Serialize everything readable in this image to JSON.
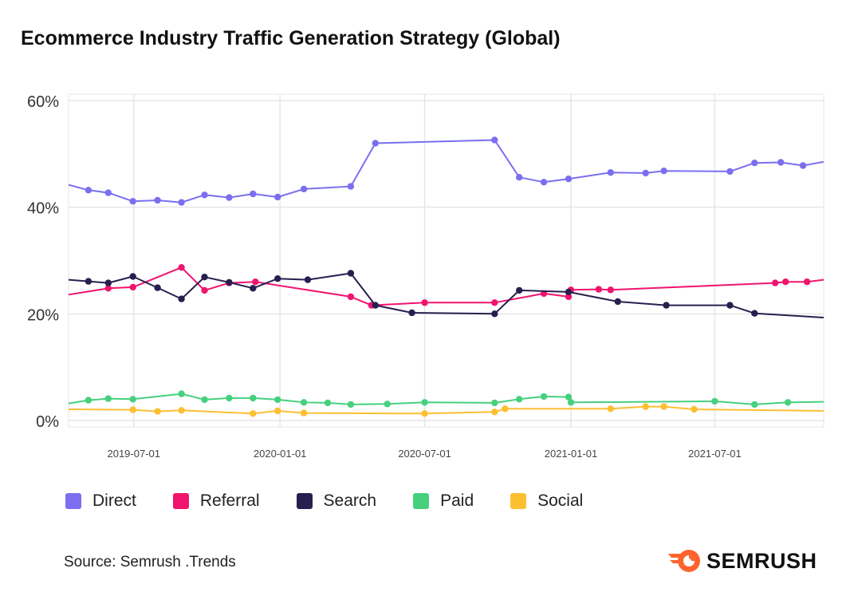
{
  "title": "Ecommerce Industry Traffic Generation Strategy (Global)",
  "source": "Source: Semrush .Trends",
  "brand": {
    "name": "SEMRUSH",
    "color": "#ff642d",
    "logo_icon": "semrush-flame-icon"
  },
  "chart_data": {
    "type": "line",
    "title": "Ecommerce Industry Traffic Generation Strategy (Global)",
    "xlabel": "",
    "ylabel": "",
    "x_ticks": [
      "2019-07-01",
      "2020-01-01",
      "2020-07-01",
      "2021-01-01",
      "2021-07-01"
    ],
    "x_range": [
      "2019-04-10",
      "2021-11-15"
    ],
    "y_ticks": [
      "0%",
      "20%",
      "40%",
      "60%"
    ],
    "ylim": [
      0,
      60
    ],
    "grid": true,
    "legend_position": "bottom",
    "series": [
      {
        "name": "Direct",
        "color": "#7b6ff0",
        "points": [
          [
            "2019-04-10",
            44.2,
            false
          ],
          [
            "2019-05-05",
            43.2,
            true
          ],
          [
            "2019-05-30",
            42.7,
            true
          ],
          [
            "2019-06-30",
            41.1,
            true
          ],
          [
            "2019-07-31",
            41.3,
            true
          ],
          [
            "2019-08-30",
            40.9,
            true
          ],
          [
            "2019-09-28",
            42.3,
            true
          ],
          [
            "2019-10-29",
            41.8,
            true
          ],
          [
            "2019-11-28",
            42.5,
            true
          ],
          [
            "2019-12-29",
            41.9,
            true
          ],
          [
            "2020-01-31",
            43.4,
            true
          ],
          [
            "2020-03-30",
            43.9,
            true
          ],
          [
            "2020-04-30",
            52.0,
            true
          ],
          [
            "2020-09-27",
            52.6,
            true
          ],
          [
            "2020-10-28",
            45.6,
            true
          ],
          [
            "2020-11-28",
            44.7,
            true
          ],
          [
            "2020-12-29",
            45.3,
            true
          ],
          [
            "2021-02-20",
            46.5,
            true
          ],
          [
            "2021-04-05",
            46.4,
            true
          ],
          [
            "2021-04-28",
            46.8,
            true
          ],
          [
            "2021-07-20",
            46.7,
            true
          ],
          [
            "2021-08-20",
            48.3,
            true
          ],
          [
            "2021-09-22",
            48.4,
            true
          ],
          [
            "2021-10-20",
            47.8,
            true
          ],
          [
            "2021-11-15",
            48.5,
            false
          ]
        ]
      },
      {
        "name": "Referral",
        "color": "#f0146e",
        "points": [
          [
            "2019-04-10",
            23.6,
            false
          ],
          [
            "2019-05-30",
            24.8,
            true
          ],
          [
            "2019-06-30",
            25.0,
            true
          ],
          [
            "2019-08-30",
            28.7,
            true
          ],
          [
            "2019-09-28",
            24.4,
            true
          ],
          [
            "2019-10-29",
            25.8,
            true
          ],
          [
            "2019-12-01",
            26.0,
            true
          ],
          [
            "2020-03-30",
            23.2,
            true
          ],
          [
            "2020-04-25",
            21.6,
            true
          ],
          [
            "2020-07-01",
            22.1,
            true
          ],
          [
            "2020-09-27",
            22.1,
            true
          ],
          [
            "2020-11-28",
            23.8,
            true
          ],
          [
            "2020-12-29",
            23.2,
            true
          ],
          [
            "2021-01-01",
            24.5,
            true
          ],
          [
            "2021-02-05",
            24.6,
            true
          ],
          [
            "2021-02-20",
            24.5,
            true
          ],
          [
            "2021-09-15",
            25.8,
            true
          ],
          [
            "2021-09-28",
            26.0,
            true
          ],
          [
            "2021-10-25",
            26.0,
            true
          ],
          [
            "2021-11-15",
            26.4,
            false
          ]
        ]
      },
      {
        "name": "Search",
        "color": "#27204e",
        "points": [
          [
            "2019-04-10",
            26.4,
            false
          ],
          [
            "2019-05-05",
            26.1,
            true
          ],
          [
            "2019-05-30",
            25.8,
            true
          ],
          [
            "2019-06-30",
            27.0,
            true
          ],
          [
            "2019-07-31",
            24.9,
            true
          ],
          [
            "2019-08-30",
            22.8,
            true
          ],
          [
            "2019-09-28",
            26.9,
            true
          ],
          [
            "2019-10-29",
            25.9,
            true
          ],
          [
            "2019-11-28",
            24.8,
            true
          ],
          [
            "2019-12-29",
            26.6,
            true
          ],
          [
            "2020-02-05",
            26.4,
            true
          ],
          [
            "2020-03-30",
            27.6,
            true
          ],
          [
            "2020-04-30",
            21.6,
            true
          ],
          [
            "2020-06-15",
            20.2,
            true
          ],
          [
            "2020-09-27",
            20.0,
            true
          ],
          [
            "2020-10-28",
            24.4,
            true
          ],
          [
            "2020-12-29",
            24.1,
            true
          ],
          [
            "2021-03-01",
            22.3,
            true
          ],
          [
            "2021-05-01",
            21.6,
            true
          ],
          [
            "2021-07-20",
            21.6,
            true
          ],
          [
            "2021-08-20",
            20.1,
            true
          ],
          [
            "2021-11-15",
            19.3,
            false
          ]
        ]
      },
      {
        "name": "Paid",
        "color": "#46d07e",
        "points": [
          [
            "2019-04-10",
            3.2,
            false
          ],
          [
            "2019-05-05",
            3.8,
            true
          ],
          [
            "2019-05-30",
            4.1,
            true
          ],
          [
            "2019-06-30",
            4.0,
            true
          ],
          [
            "2019-08-30",
            5.0,
            true
          ],
          [
            "2019-09-28",
            3.9,
            true
          ],
          [
            "2019-10-29",
            4.2,
            true
          ],
          [
            "2019-11-28",
            4.2,
            true
          ],
          [
            "2019-12-29",
            3.9,
            true
          ],
          [
            "2020-01-31",
            3.4,
            true
          ],
          [
            "2020-03-01",
            3.3,
            true
          ],
          [
            "2020-03-30",
            3.0,
            true
          ],
          [
            "2020-05-15",
            3.1,
            true
          ],
          [
            "2020-07-01",
            3.4,
            true
          ],
          [
            "2020-09-27",
            3.3,
            true
          ],
          [
            "2020-10-28",
            4.0,
            true
          ],
          [
            "2020-11-28",
            4.5,
            true
          ],
          [
            "2020-12-29",
            4.4,
            true
          ],
          [
            "2021-01-01",
            3.4,
            true
          ],
          [
            "2021-07-01",
            3.6,
            true
          ],
          [
            "2021-08-20",
            3.0,
            true
          ],
          [
            "2021-10-01",
            3.4,
            true
          ],
          [
            "2021-11-15",
            3.5,
            false
          ]
        ]
      },
      {
        "name": "Social",
        "color": "#fdbf32",
        "points": [
          [
            "2019-04-10",
            2.1,
            false
          ],
          [
            "2019-06-30",
            2.0,
            true
          ],
          [
            "2019-07-31",
            1.7,
            true
          ],
          [
            "2019-08-30",
            1.9,
            true
          ],
          [
            "2019-11-28",
            1.3,
            true
          ],
          [
            "2019-12-29",
            1.8,
            true
          ],
          [
            "2020-01-31",
            1.4,
            true
          ],
          [
            "2020-07-01",
            1.3,
            true
          ],
          [
            "2020-09-27",
            1.6,
            true
          ],
          [
            "2020-10-10",
            2.2,
            true
          ],
          [
            "2021-02-20",
            2.2,
            true
          ],
          [
            "2021-04-05",
            2.6,
            true
          ],
          [
            "2021-04-28",
            2.6,
            true
          ],
          [
            "2021-06-05",
            2.1,
            true
          ],
          [
            "2021-11-15",
            1.8,
            false
          ]
        ]
      }
    ]
  }
}
